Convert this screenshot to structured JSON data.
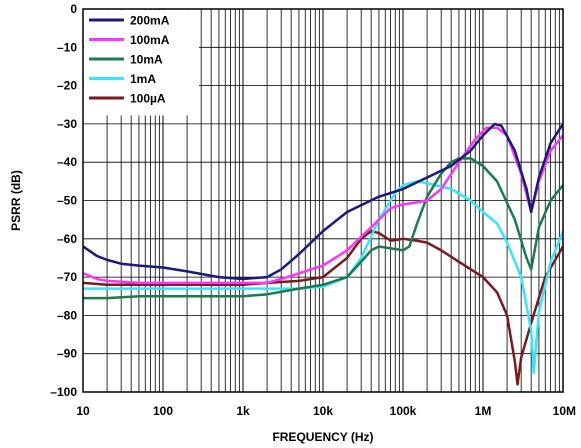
{
  "chart_data": {
    "type": "line",
    "title": "",
    "xlabel": "FREQUENCY (Hz)",
    "ylabel": "PSRR (dB)",
    "xscale": "log",
    "xlim": [
      10,
      10000000
    ],
    "ylim": [
      -100,
      0
    ],
    "x_ticks": [
      10,
      100,
      1000,
      10000,
      100000,
      1000000,
      10000000
    ],
    "x_tick_labels": [
      "10",
      "100",
      "1k",
      "10k",
      "100k",
      "1M",
      "10M"
    ],
    "y_ticks": [
      0,
      -10,
      -20,
      -30,
      -40,
      -50,
      -60,
      -70,
      -80,
      -90,
      -100
    ],
    "y_tick_labels": [
      "0",
      "–10",
      "–20",
      "–30",
      "–40",
      "–50",
      "–60",
      "–70",
      "–80",
      "–90",
      "–100"
    ],
    "grid": true,
    "legend_position": "top-left",
    "series": [
      {
        "name": "200mA",
        "color": "#1a1a7a",
        "points": [
          [
            10,
            -62
          ],
          [
            15,
            -64.5
          ],
          [
            20,
            -65.5
          ],
          [
            30,
            -66.5
          ],
          [
            50,
            -67
          ],
          [
            100,
            -67.5
          ],
          [
            200,
            -68.5
          ],
          [
            500,
            -70
          ],
          [
            1000,
            -70.5
          ],
          [
            2000,
            -70
          ],
          [
            3000,
            -68
          ],
          [
            5000,
            -64
          ],
          [
            10000,
            -58
          ],
          [
            20000,
            -53
          ],
          [
            50000,
            -49
          ],
          [
            100000,
            -47
          ],
          [
            200000,
            -44
          ],
          [
            400000,
            -41
          ],
          [
            700000,
            -37
          ],
          [
            1000000,
            -33
          ],
          [
            1400000,
            -30
          ],
          [
            1700000,
            -30.5
          ],
          [
            2500000,
            -37
          ],
          [
            3500000,
            -47
          ],
          [
            4000000,
            -53
          ],
          [
            5000000,
            -44
          ],
          [
            7000000,
            -35
          ],
          [
            10000000,
            -30
          ]
        ]
      },
      {
        "name": "100mA",
        "color": "#ff33ff",
        "points": [
          [
            10,
            -69
          ],
          [
            15,
            -70.5
          ],
          [
            20,
            -71
          ],
          [
            50,
            -71.5
          ],
          [
            100,
            -71.5
          ],
          [
            500,
            -71.5
          ],
          [
            1000,
            -71.5
          ],
          [
            2000,
            -71.5
          ],
          [
            3000,
            -70.5
          ],
          [
            5000,
            -69
          ],
          [
            10000,
            -67
          ],
          [
            20000,
            -63
          ],
          [
            40000,
            -57
          ],
          [
            70000,
            -52
          ],
          [
            100000,
            -51
          ],
          [
            150000,
            -50.5
          ],
          [
            200000,
            -50
          ],
          [
            300000,
            -47
          ],
          [
            500000,
            -40
          ],
          [
            800000,
            -34
          ],
          [
            1100000,
            -31
          ],
          [
            1500000,
            -31
          ],
          [
            2000000,
            -33
          ],
          [
            3000000,
            -43
          ],
          [
            4000000,
            -53
          ],
          [
            5000000,
            -45
          ],
          [
            7000000,
            -37
          ],
          [
            10000000,
            -33
          ]
        ]
      },
      {
        "name": "10mA",
        "color": "#1a7a50",
        "points": [
          [
            10,
            -75.5
          ],
          [
            20,
            -75.5
          ],
          [
            50,
            -75
          ],
          [
            100,
            -75
          ],
          [
            500,
            -75
          ],
          [
            1000,
            -75
          ],
          [
            2000,
            -74.5
          ],
          [
            5000,
            -73
          ],
          [
            10000,
            -72
          ],
          [
            20000,
            -70
          ],
          [
            30000,
            -66
          ],
          [
            40000,
            -63
          ],
          [
            50000,
            -62
          ],
          [
            70000,
            -62.5
          ],
          [
            100000,
            -63
          ],
          [
            120000,
            -62
          ],
          [
            150000,
            -56
          ],
          [
            200000,
            -49
          ],
          [
            300000,
            -43
          ],
          [
            400000,
            -40
          ],
          [
            500000,
            -39
          ],
          [
            700000,
            -39
          ],
          [
            1000000,
            -41
          ],
          [
            1500000,
            -45
          ],
          [
            2500000,
            -55
          ],
          [
            3500000,
            -65
          ],
          [
            4000000,
            -68
          ],
          [
            5000000,
            -57
          ],
          [
            7000000,
            -50
          ],
          [
            10000000,
            -46
          ]
        ]
      },
      {
        "name": "1mA",
        "color": "#33e6ff",
        "points": [
          [
            10,
            -73
          ],
          [
            20,
            -73
          ],
          [
            50,
            -73
          ],
          [
            100,
            -73
          ],
          [
            500,
            -73
          ],
          [
            1000,
            -73
          ],
          [
            2000,
            -73
          ],
          [
            5000,
            -73
          ],
          [
            10000,
            -72.5
          ],
          [
            20000,
            -70
          ],
          [
            30000,
            -65
          ],
          [
            50000,
            -55
          ],
          [
            80000,
            -48
          ],
          [
            100000,
            -46
          ],
          [
            150000,
            -45
          ],
          [
            200000,
            -45.5
          ],
          [
            400000,
            -47
          ],
          [
            700000,
            -50
          ],
          [
            1000000,
            -53
          ],
          [
            1500000,
            -56
          ],
          [
            2000000,
            -61
          ],
          [
            3000000,
            -70
          ],
          [
            4000000,
            -84
          ],
          [
            4300000,
            -95
          ],
          [
            5000000,
            -79
          ],
          [
            7000000,
            -66
          ],
          [
            10000000,
            -58
          ]
        ]
      },
      {
        "name": "100µA",
        "color": "#7a1a1a",
        "points": [
          [
            10,
            -71.5
          ],
          [
            20,
            -72
          ],
          [
            50,
            -72
          ],
          [
            100,
            -72
          ],
          [
            500,
            -72
          ],
          [
            1000,
            -72
          ],
          [
            2000,
            -71.5
          ],
          [
            5000,
            -71
          ],
          [
            10000,
            -70
          ],
          [
            20000,
            -65
          ],
          [
            30000,
            -60
          ],
          [
            40000,
            -58
          ],
          [
            50000,
            -58.5
          ],
          [
            70000,
            -60.5
          ],
          [
            100000,
            -60
          ],
          [
            150000,
            -60.5
          ],
          [
            200000,
            -61
          ],
          [
            300000,
            -63
          ],
          [
            500000,
            -66
          ],
          [
            1000000,
            -70
          ],
          [
            1500000,
            -74
          ],
          [
            2000000,
            -80
          ],
          [
            2500000,
            -92
          ],
          [
            2700000,
            -98
          ],
          [
            3000000,
            -91
          ],
          [
            4000000,
            -82
          ],
          [
            6000000,
            -70
          ],
          [
            10000000,
            -62
          ]
        ]
      }
    ]
  }
}
